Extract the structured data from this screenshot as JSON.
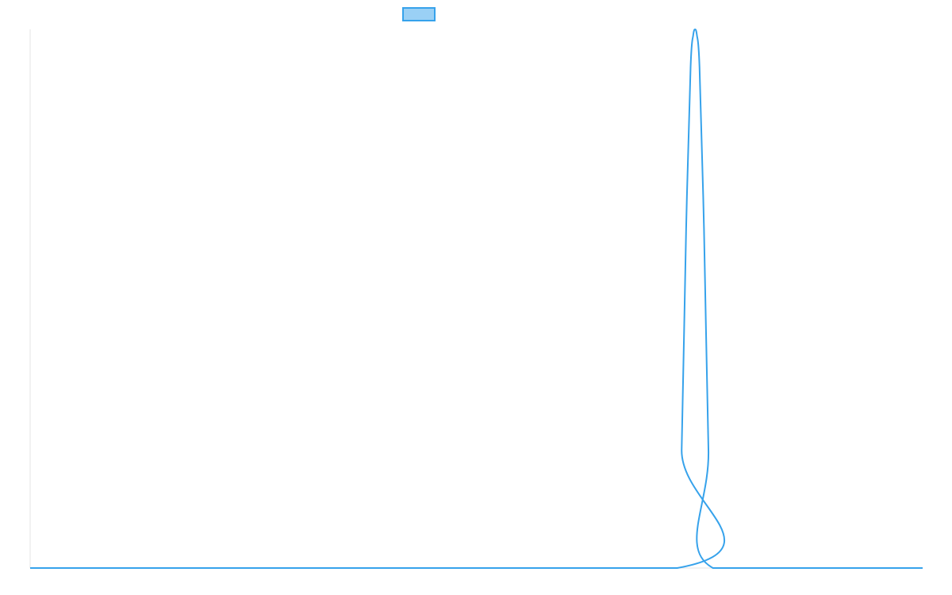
{
  "chart_data": {
    "type": "line",
    "title": "",
    "xlabel": "",
    "ylabel": "",
    "grid": false,
    "legend": "top-center",
    "xlim": [
      0,
      100
    ],
    "ylim": [
      0,
      1
    ],
    "series": [
      {
        "label": "",
        "color": "#36a2eb",
        "fill": "#9ad0f5",
        "x": [
          0,
          72.5,
          73.0,
          73.5,
          74.0,
          74.3,
          74.5,
          74.7,
          75.0,
          75.5,
          76.0,
          76.5,
          100
        ],
        "y": [
          0,
          0,
          0.22,
          0.63,
          0.93,
          0.99,
          1.0,
          0.99,
          0.93,
          0.63,
          0.22,
          0,
          0
        ]
      }
    ]
  }
}
